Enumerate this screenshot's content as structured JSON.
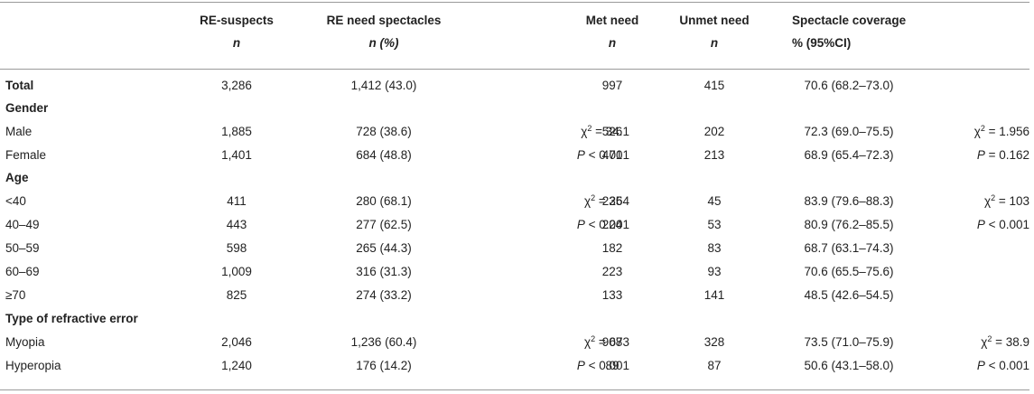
{
  "headers": {
    "re_suspects": {
      "title": "RE-suspects",
      "unit": "n"
    },
    "re_need": {
      "title": "RE need spectacles",
      "unit": "n (%)"
    },
    "met_need": {
      "title": "Met need",
      "unit": "n"
    },
    "unmet_need": {
      "title": "Unmet need",
      "unit": "n"
    },
    "coverage": {
      "title": "Spectacle coverage",
      "unit": "% (95%CI)"
    }
  },
  "rows": {
    "total": {
      "label": "Total",
      "re_suspects": "3,286",
      "re_need": "1,412 (43.0)",
      "met": "997",
      "unmet": "415",
      "coverage": "70.6 (68.2–73.0)"
    },
    "gender_section": {
      "label": "Gender"
    },
    "male": {
      "label": "Male",
      "re_suspects": "1,885",
      "re_need": "728 (38.6)",
      "chi_sym": "χ",
      "chi_exp": "2",
      "chi_val": " = 34.1",
      "met": "526",
      "unmet": "202",
      "coverage": "72.3 (69.0–75.5)",
      "chi2_sym": "χ",
      "chi2_exp": "2",
      "chi2_val": " = 1.956"
    },
    "female": {
      "label": "Female",
      "re_suspects": "1,401",
      "re_need": "684 (48.8)",
      "p_sym": "P",
      "p_val": " < 0.001",
      "met": "471",
      "unmet": "213",
      "coverage": "68.9 (65.4–72.3)",
      "p2_sym": "P",
      "p2_val": " = 0.162"
    },
    "age_section": {
      "label": "Age"
    },
    "age_lt40": {
      "label": "<40",
      "re_suspects": "411",
      "re_need": "280 (68.1)",
      "chi_sym": "χ",
      "chi_exp": "2",
      "chi_val": " = 264",
      "met": "235",
      "unmet": "45",
      "coverage": "83.9 (79.6–88.3)",
      "chi2_sym": "χ",
      "chi2_exp": "2",
      "chi2_val": " = 103"
    },
    "age_40_49": {
      "label": "40–49",
      "re_suspects": "443",
      "re_need": "277 (62.5)",
      "p_sym": "P",
      "p_val": " < 0.001",
      "met": "224",
      "unmet": "53",
      "coverage": "80.9 (76.2–85.5)",
      "p2_sym": "P",
      "p2_val": " < 0.001"
    },
    "age_50_59": {
      "label": "50–59",
      "re_suspects": "598",
      "re_need": "265 (44.3)",
      "met": "182",
      "unmet": "83",
      "coverage": "68.7 (63.1–74.3)"
    },
    "age_60_69": {
      "label": "60–69",
      "re_suspects": "1,009",
      "re_need": "316 (31.3)",
      "met": "223",
      "unmet": "93",
      "coverage": "70.6 (65.5–75.6)"
    },
    "age_ge70": {
      "label": "≥70",
      "re_suspects": "825",
      "re_need": "274 (33.2)",
      "met": "133",
      "unmet": "141",
      "coverage": "48.5 (42.6–54.5)"
    },
    "type_section": {
      "label": "Type of refractive error"
    },
    "myopia": {
      "label": "Myopia",
      "re_suspects": "2,046",
      "re_need": "1,236 (60.4)",
      "chi_sym": "χ",
      "chi_exp": "2",
      "chi_val": " = 673",
      "met": "908",
      "unmet": "328",
      "coverage": "73.5 (71.0–75.9)",
      "chi2_sym": "χ",
      "chi2_exp": "2",
      "chi2_val": " = 38.9"
    },
    "hyperopia": {
      "label": "Hyperopia",
      "re_suspects": "1,240",
      "re_need": "176 (14.2)",
      "p_sym": "P",
      "p_val": " < 0.001",
      "met": "89",
      "unmet": "87",
      "coverage": "50.6 (43.1–58.0)",
      "p2_sym": "P",
      "p2_val": " < 0.001"
    }
  }
}
